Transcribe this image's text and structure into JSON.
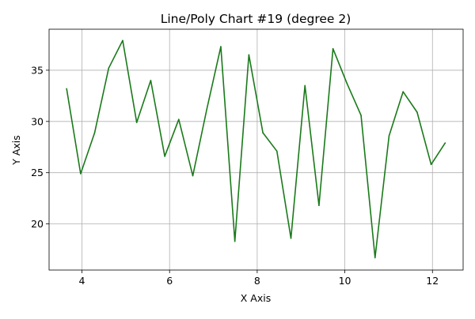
{
  "chart_data": {
    "type": "line",
    "title": "Line/Poly Chart #19 (degree 2)",
    "xlabel": "X Axis",
    "ylabel": "Y Axis",
    "xlim": [
      3.25,
      12.7
    ],
    "ylim": [
      15.5,
      39.0
    ],
    "xticks": [
      4,
      6,
      8,
      10,
      12
    ],
    "yticks": [
      20,
      25,
      30,
      35
    ],
    "grid": true,
    "series": [
      {
        "color": "#1a7a1a",
        "x": [
          3.65,
          3.97,
          4.29,
          4.61,
          4.93,
          5.25,
          5.57,
          5.89,
          6.21,
          6.53,
          6.85,
          7.17,
          7.49,
          7.81,
          8.13,
          8.45,
          8.77,
          9.09,
          9.41,
          9.73,
          10.05,
          10.37,
          10.69,
          11.01,
          11.33,
          11.65,
          11.97,
          12.29
        ],
        "y": [
          33.2,
          24.9,
          28.9,
          35.2,
          37.9,
          29.9,
          34.0,
          26.6,
          30.2,
          24.7,
          31.2,
          37.3,
          18.3,
          36.5,
          28.9,
          27.1,
          18.6,
          33.5,
          21.8,
          37.1,
          33.7,
          30.6,
          16.7,
          28.6,
          32.9,
          30.9,
          25.8,
          27.9
        ]
      }
    ]
  }
}
